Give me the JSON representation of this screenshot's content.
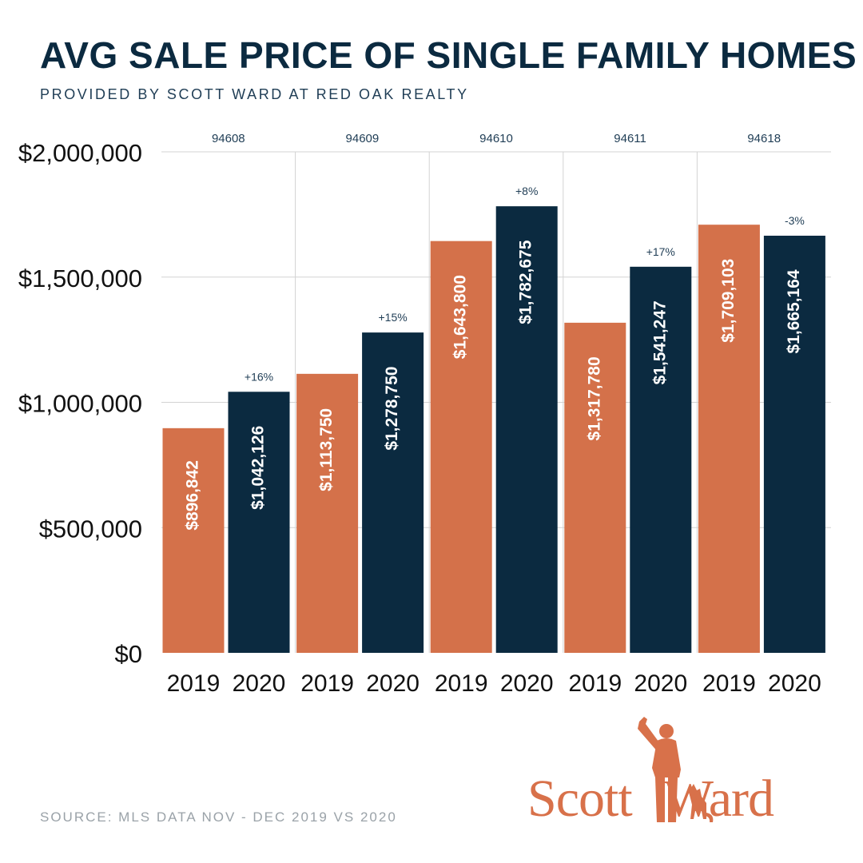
{
  "header": {
    "title": "AVG SALE PRICE OF SINGLE FAMILY HOMES",
    "subtitle": "PROVIDED BY SCOTT WARD AT RED OAK REALTY"
  },
  "footer": {
    "source": "SOURCE: MLS DATA NOV - DEC 2019 VS 2020"
  },
  "logo": {
    "name_first": "Scott",
    "name_last": "Ward"
  },
  "colors": {
    "y2019": "#d4714a",
    "y2020": "#0b2a40",
    "title": "#0b2a40",
    "grid": "#d3d3d3"
  },
  "chart_data": {
    "type": "bar",
    "title": "AVG SALE PRICE OF SINGLE FAMILY HOMES",
    "xlabel": "",
    "ylabel": "",
    "ylim": [
      0,
      2000000
    ],
    "grid": true,
    "y_ticks": [
      {
        "value": 0,
        "label": "$0"
      },
      {
        "value": 500000,
        "label": "$500,000"
      },
      {
        "value": 1000000,
        "label": "$1,000,000"
      },
      {
        "value": 1500000,
        "label": "$1,500,000"
      },
      {
        "value": 2000000,
        "label": "$2,000,000"
      }
    ],
    "groups": [
      {
        "zip": "94608",
        "change": "+16%",
        "bars": [
          {
            "year": "2019",
            "value": 896842,
            "label": "$896,842"
          },
          {
            "year": "2020",
            "value": 1042126,
            "label": "$1,042,126"
          }
        ]
      },
      {
        "zip": "94609",
        "change": "+15%",
        "bars": [
          {
            "year": "2019",
            "value": 1113750,
            "label": "$1,113,750"
          },
          {
            "year": "2020",
            "value": 1278750,
            "label": "$1,278,750"
          }
        ]
      },
      {
        "zip": "94610",
        "change": "+8%",
        "bars": [
          {
            "year": "2019",
            "value": 1643800,
            "label": "$1,643,800"
          },
          {
            "year": "2020",
            "value": 1782675,
            "label": "$1,782,675"
          }
        ]
      },
      {
        "zip": "94611",
        "change": "+17%",
        "bars": [
          {
            "year": "2019",
            "value": 1317780,
            "label": "$1,317,780"
          },
          {
            "year": "2020",
            "value": 1541247,
            "label": "$1,541,247"
          }
        ]
      },
      {
        "zip": "94618",
        "change": "-3%",
        "bars": [
          {
            "year": "2019",
            "value": 1709103,
            "label": "$1,709,103"
          },
          {
            "year": "2020",
            "value": 1665164,
            "label": "$1,665,164"
          }
        ]
      }
    ]
  }
}
